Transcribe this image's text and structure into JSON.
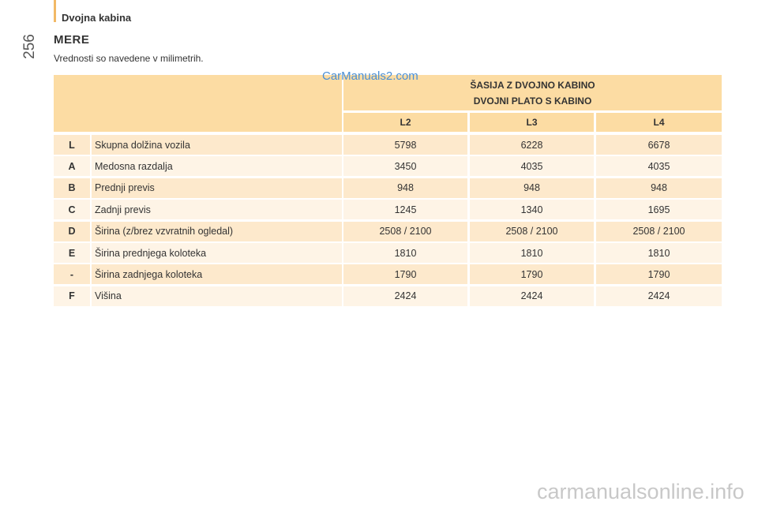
{
  "header": {
    "section": "Dvojna kabina",
    "page_number": "256"
  },
  "title": "MERE",
  "subtitle": "Vrednosti so navedene v milimetrih.",
  "watermarks": [
    "CarManuals2.com",
    "carmanualsonline.info"
  ],
  "table": {
    "group_header": [
      "ŠASIJA Z DVOJNO KABINO",
      "DVOJNI PLATO S KABINO"
    ],
    "columns": [
      "L2",
      "L3",
      "L4"
    ],
    "rows": [
      [
        "L",
        "Skupna dolžina vozila",
        "5798",
        "6228",
        "6678"
      ],
      [
        "A",
        "Medosna razdalja",
        "3450",
        "4035",
        "4035"
      ],
      [
        "B",
        "Prednji previs",
        "948",
        "948",
        "948"
      ],
      [
        "C",
        "Zadnji previs",
        "1245",
        "1340",
        "1695"
      ],
      [
        "D",
        "Širina (z/brez vzvratnih ogledal)",
        "2508 / 2100",
        "2508 / 2100",
        "2508 / 2100"
      ],
      [
        "E",
        "Širina prednjega koloteka",
        "1810",
        "1810",
        "1810"
      ],
      [
        "-",
        "Širina zadnjega koloteka",
        "1790",
        "1790",
        "1790"
      ],
      [
        "F",
        "Višina",
        "2424",
        "2424",
        "2424"
      ]
    ]
  }
}
